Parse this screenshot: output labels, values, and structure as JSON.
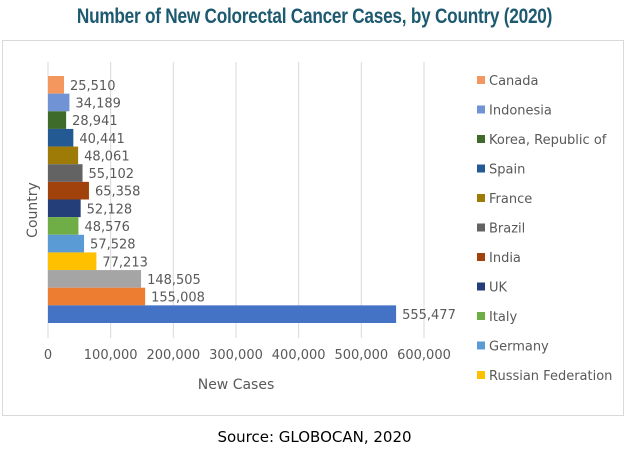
{
  "chart_data": {
    "type": "bar",
    "orientation": "horizontal",
    "title": "Number of New Colorectal Cancer Cases, by Country (2020)",
    "xlabel": "New Cases",
    "ylabel": "Country",
    "xlim": [
      0,
      600000
    ],
    "xticks": [
      0,
      100000,
      200000,
      300000,
      400000,
      500000,
      600000
    ],
    "xtick_labels": [
      "0",
      "100,000",
      "200,000",
      "300,000",
      "400,000",
      "500,000",
      "600,000"
    ],
    "grid": true,
    "legend_position": "right",
    "series": [
      {
        "name": "Canada",
        "value": 25510,
        "label": "25,510",
        "color": "#f4975f"
      },
      {
        "name": "Indonesia",
        "value": 34189,
        "label": "34,189",
        "color": "#6f93d4"
      },
      {
        "name": "Korea, Republic of",
        "value": 28941,
        "label": "28,941",
        "color": "#3e6b2a"
      },
      {
        "name": "Spain",
        "value": 40441,
        "label": "40,441",
        "color": "#245a93"
      },
      {
        "name": "France",
        "value": 48061,
        "label": "48,061",
        "color": "#9e7b06"
      },
      {
        "name": "Brazil",
        "value": 55102,
        "label": "55,102",
        "color": "#636363"
      },
      {
        "name": "India",
        "value": 65358,
        "label": "65,358",
        "color": "#a1420c"
      },
      {
        "name": "UK",
        "value": 52128,
        "label": "52,128",
        "color": "#233e78"
      },
      {
        "name": "Italy",
        "value": 48576,
        "label": "48,576",
        "color": "#6fad47"
      },
      {
        "name": "Germany",
        "value": 57528,
        "label": "57,528",
        "color": "#5b9bd5"
      },
      {
        "name": "Russian Federation",
        "value": 77213,
        "label": "77,213",
        "color": "#ffc000"
      },
      {
        "name": "",
        "value": 148505,
        "label": "148,505",
        "color": "#a5a5a5"
      },
      {
        "name": "",
        "value": 155008,
        "label": "155,008",
        "color": "#ed7d31"
      },
      {
        "name": "",
        "value": 555477,
        "label": "555,477",
        "color": "#4472c4"
      }
    ],
    "source": "Source: GLOBOCAN, 2020"
  }
}
